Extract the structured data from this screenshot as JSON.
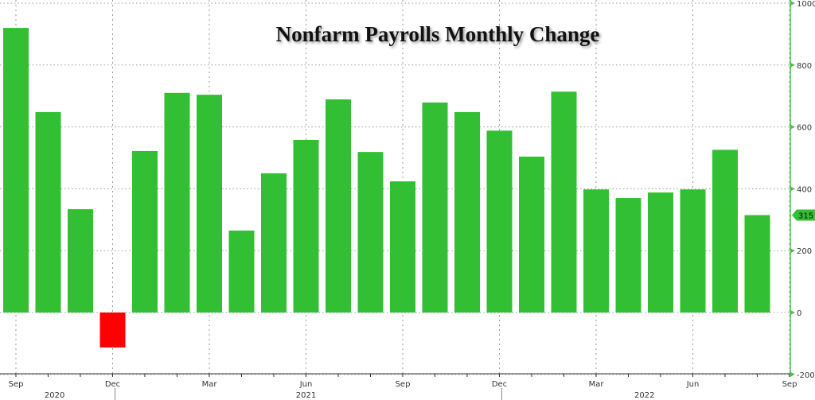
{
  "chart_data": {
    "type": "bar",
    "title": "Nonfarm Payrolls Monthly Change",
    "categories": [
      "2020-09",
      "2020-10",
      "2020-11",
      "2020-12",
      "2021-01",
      "2021-02",
      "2021-03",
      "2021-04",
      "2021-05",
      "2021-06",
      "2021-07",
      "2021-08",
      "2021-09",
      "2021-10",
      "2021-11",
      "2021-12",
      "2022-01",
      "2022-02",
      "2022-03",
      "2022-04",
      "2022-05",
      "2022-06",
      "2022-07",
      "2022-08"
    ],
    "values": [
      920,
      648,
      334,
      -113,
      522,
      710,
      704,
      265,
      450,
      558,
      689,
      519,
      424,
      679,
      648,
      588,
      504,
      714,
      398,
      370,
      388,
      398,
      526,
      315
    ],
    "ylim": [
      -200,
      1000
    ],
    "yticks": [
      "-200",
      "0",
      "200",
      "400",
      "600",
      "800",
      "1000"
    ],
    "xticks": [
      {
        "label": "Sep",
        "month": 0
      },
      {
        "label": "Dec",
        "month": 3
      },
      {
        "label": "Mar",
        "month": 6
      },
      {
        "label": "Jun",
        "month": 9
      },
      {
        "label": "Sep",
        "month": 12
      },
      {
        "label": "Dec",
        "month": 15
      },
      {
        "label": "Mar",
        "month": 18
      },
      {
        "label": "Jun",
        "month": 21
      },
      {
        "label": "Sep",
        "month": 24
      }
    ],
    "years": [
      {
        "label": "2020",
        "month": 1.2
      },
      {
        "label": "2021",
        "month": 9
      },
      {
        "label": "2022",
        "month": 19.5
      }
    ],
    "last_value_label": "315",
    "grid": true,
    "y_axis_side": "right",
    "colors": {
      "positive": "#33bf33",
      "negative": "#ff0000",
      "axis": "#4cbf4c"
    }
  }
}
